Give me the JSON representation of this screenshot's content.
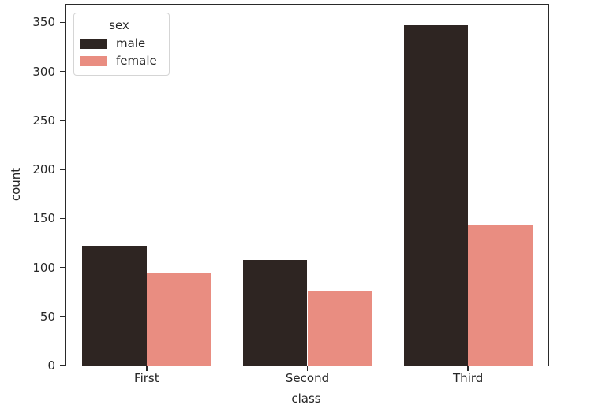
{
  "chart_data": {
    "type": "bar",
    "title": "",
    "categories": [
      "First",
      "Second",
      "Third"
    ],
    "series": [
      {
        "name": "male",
        "color": "#2e2522",
        "values": [
          122,
          108,
          347
        ]
      },
      {
        "name": "female",
        "color": "#e98d81",
        "values": [
          94,
          76,
          144
        ]
      }
    ],
    "xlabel": "class",
    "ylabel": "count",
    "ylim": [
      0,
      368
    ],
    "yticks": [
      0,
      50,
      100,
      150,
      200,
      250,
      300,
      350
    ],
    "grid": false,
    "legend": {
      "title": "sex",
      "position": "upper-left",
      "entries": [
        "male",
        "female"
      ]
    },
    "colors": {
      "axis": "#2a2a2a",
      "background": "#ffffff",
      "legend_border": "#d5d5d5"
    }
  }
}
